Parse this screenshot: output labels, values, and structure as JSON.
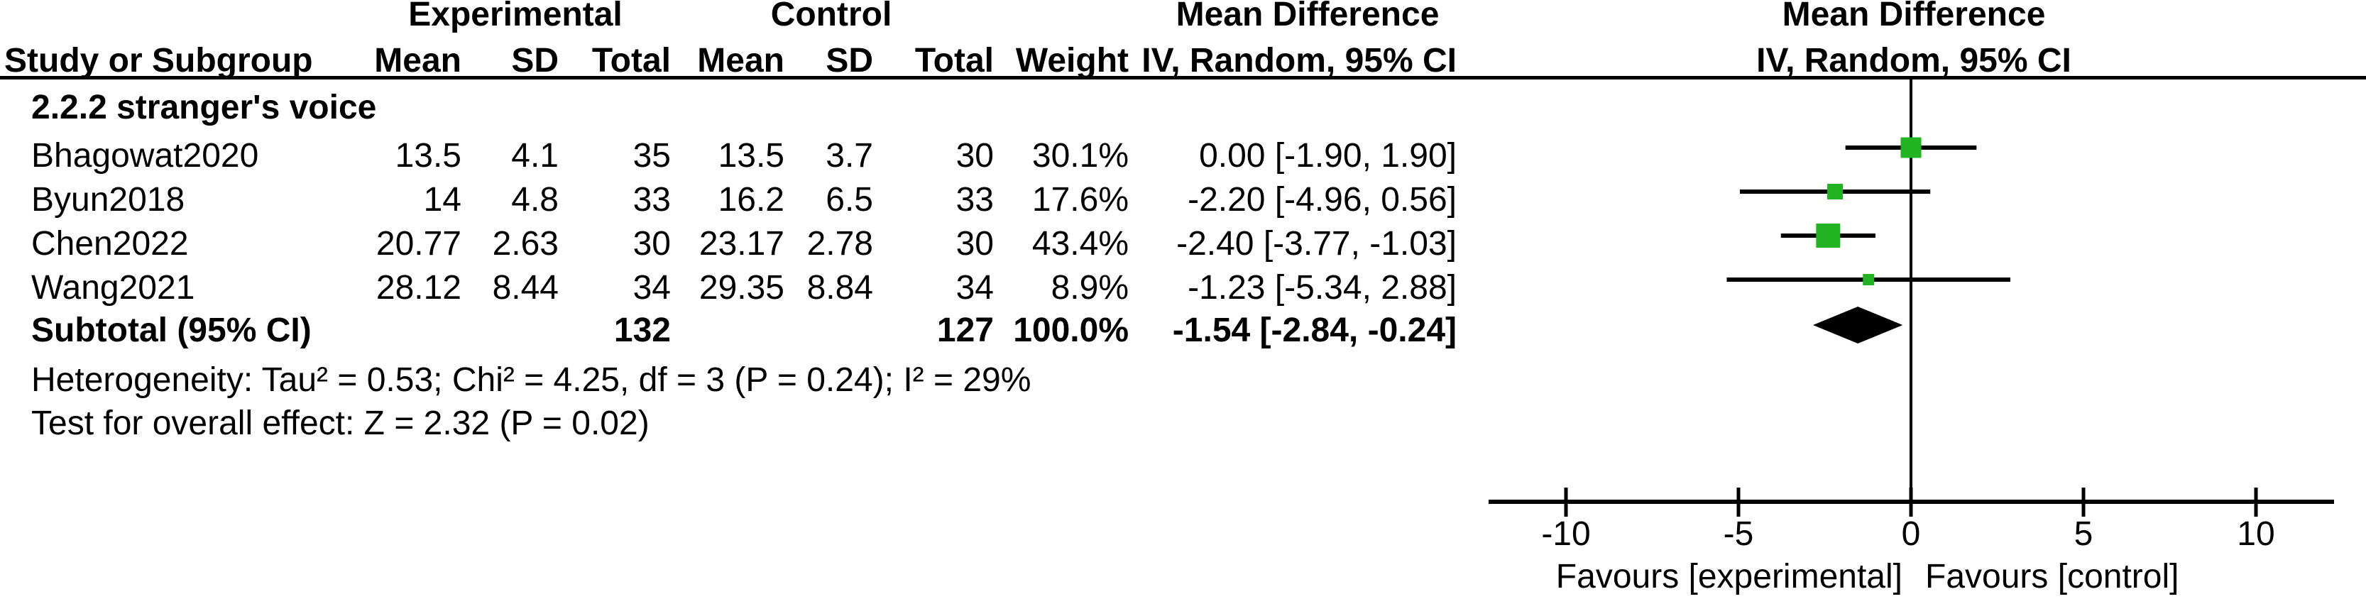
{
  "header": {
    "experimental_title": "Experimental",
    "control_title": "Control",
    "table_effect_title": "Mean Difference",
    "table_effect_subtitle": "IV, Random, 95% CI",
    "plot_effect_title": "Mean Difference",
    "plot_effect_subtitle": "IV, Random, 95% CI",
    "columns": [
      "Study or Subgroup",
      "Mean",
      "SD",
      "Total",
      "Mean",
      "SD",
      "Total",
      "Weight"
    ]
  },
  "subgroup": {
    "title": "2.2.2 stranger's voice"
  },
  "table": {
    "rows": [
      {
        "study": "Bhagowat2020",
        "mean_e": "13.5",
        "sd_e": "4.1",
        "total_e": "35",
        "mean_c": "13.5",
        "sd_c": "3.7",
        "total_c": "30",
        "weight": "30.1%",
        "ci": "0.00 [-1.90, 1.90]"
      },
      {
        "study": "Byun2018",
        "mean_e": "14",
        "sd_e": "4.8",
        "total_e": "33",
        "mean_c": "16.2",
        "sd_c": "6.5",
        "total_c": "33",
        "weight": "17.6%",
        "ci": "-2.20 [-4.96, 0.56]"
      },
      {
        "study": "Chen2022",
        "mean_e": "20.77",
        "sd_e": "2.63",
        "total_e": "30",
        "mean_c": "23.17",
        "sd_c": "2.78",
        "total_c": "30",
        "weight": "43.4%",
        "ci": "-2.40 [-3.77, -1.03]"
      },
      {
        "study": "Wang2021",
        "mean_e": "28.12",
        "sd_e": "8.44",
        "total_e": "34",
        "mean_c": "29.35",
        "sd_c": "8.84",
        "total_c": "34",
        "weight": "8.9%",
        "ci": "-1.23 [-5.34, 2.88]"
      }
    ],
    "subtotal": {
      "label": "Subtotal (95% CI)",
      "total_e": "132",
      "total_c": "127",
      "weight": "100.0%",
      "ci": "-1.54 [-2.84, -0.24]"
    }
  },
  "footnotes": {
    "heterogeneity": "Heterogeneity: Tau² = 0.53; Chi² = 4.25, df = 3 (P = 0.24); I² = 29%",
    "overall_effect": "Test for overall effect: Z = 2.32 (P = 0.02)"
  },
  "chart_data": {
    "type": "forest",
    "title": "Mean Difference",
    "subtitle": "IV, Random, 95% CI",
    "effect_measure": "Mean Difference, IV, Random, 95% CI",
    "x_ticks": [
      -10,
      -5,
      0,
      5,
      10
    ],
    "xlim": [
      -12.2,
      12.3
    ],
    "grid": false,
    "studies": [
      {
        "name": "Bhagowat2020",
        "estimate": 0.0,
        "ci_low": -1.9,
        "ci_high": 1.9,
        "weight_pct": 30.1
      },
      {
        "name": "Byun2018",
        "estimate": -2.2,
        "ci_low": -4.96,
        "ci_high": 0.56,
        "weight_pct": 17.6
      },
      {
        "name": "Chen2022",
        "estimate": -2.4,
        "ci_low": -3.77,
        "ci_high": -1.03,
        "weight_pct": 43.4
      },
      {
        "name": "Wang2021",
        "estimate": -1.23,
        "ci_low": -5.34,
        "ci_high": 2.88,
        "weight_pct": 8.9
      }
    ],
    "pooled": {
      "name": "Subtotal (95% CI)",
      "estimate": -1.54,
      "ci_low": -2.84,
      "ci_high": -0.24
    },
    "favours_left": "Favours [experimental]",
    "favours_right": "Favours [control]",
    "marker_color": "#22b322",
    "line_color": "#000000",
    "diamond_color": "#000000"
  }
}
